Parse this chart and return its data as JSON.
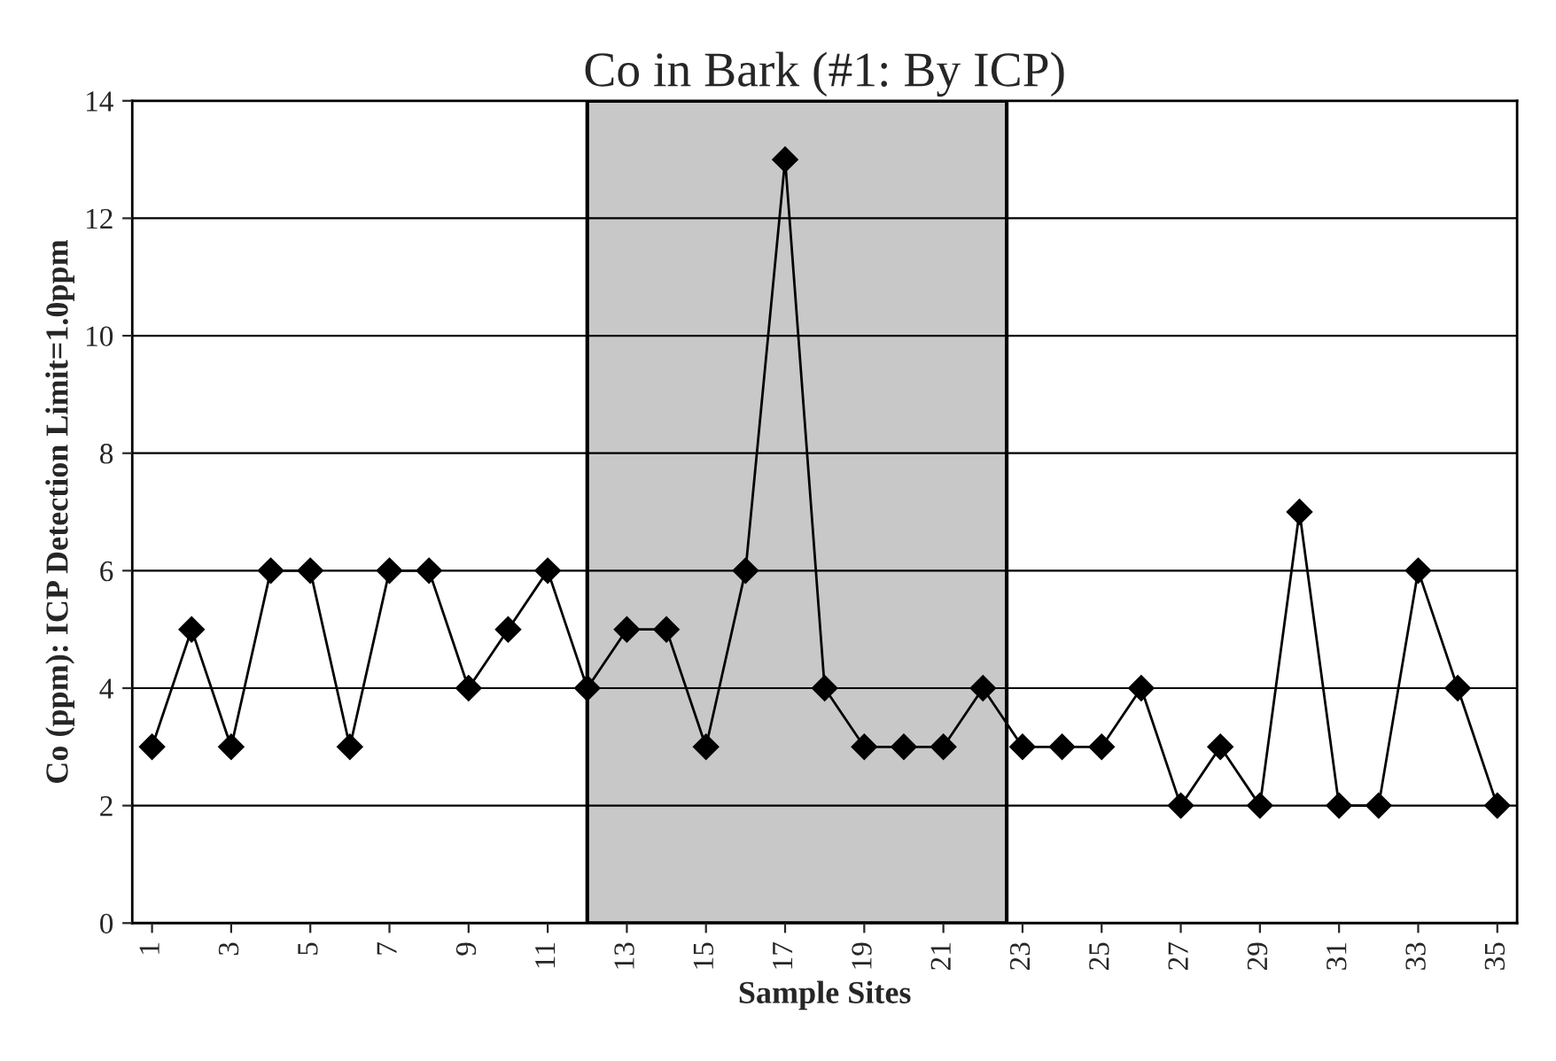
{
  "chart_data": {
    "type": "line",
    "title": "Co in Bark (#1: By ICP)",
    "xlabel": "Sample Sites",
    "ylabel": "Co (ppm): ICP Detection Limit=1.0ppm",
    "x": [
      1,
      2,
      3,
      4,
      5,
      6,
      7,
      8,
      9,
      10,
      11,
      12,
      13,
      14,
      15,
      16,
      17,
      18,
      19,
      20,
      21,
      22,
      23,
      24,
      25,
      26,
      27,
      28,
      29,
      30,
      31,
      32,
      33,
      34,
      35
    ],
    "series": [
      {
        "color": "#000000",
        "values": [
          3,
          5,
          3,
          6,
          6,
          3,
          6,
          6,
          4,
          5,
          6,
          4,
          5,
          5,
          3,
          6,
          13,
          4,
          3,
          3,
          3,
          4,
          3,
          3,
          3,
          4,
          2,
          3,
          2,
          7,
          2,
          2,
          6,
          4,
          2
        ]
      }
    ],
    "xlim": [
      0.5,
      35.5
    ],
    "xticks": [
      1,
      3,
      5,
      7,
      9,
      11,
      13,
      15,
      17,
      19,
      21,
      23,
      25,
      27,
      29,
      31,
      33,
      35
    ],
    "ylim": [
      0,
      14
    ],
    "yticks": [
      0,
      2,
      4,
      6,
      8,
      10,
      12,
      14
    ],
    "bands": [
      {
        "axis": "x",
        "from": 12,
        "to": 22.6,
        "color": "#c8c8c8"
      }
    ],
    "grid": "y",
    "marker": "diamond",
    "line_style": "solid"
  }
}
